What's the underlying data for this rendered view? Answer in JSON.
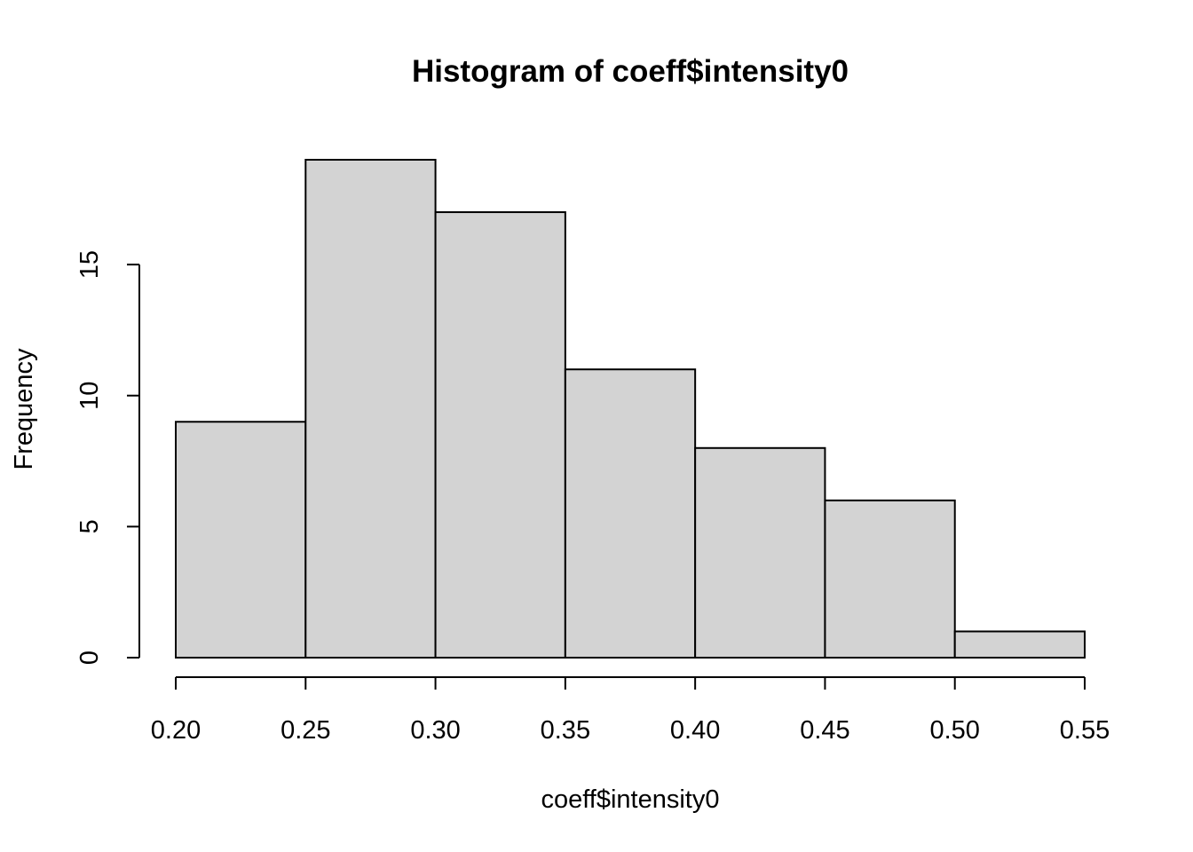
{
  "chart_data": {
    "type": "bar",
    "subtype": "histogram",
    "title": "Histogram of coeff$intensity0",
    "xlabel": "coeff$intensity0",
    "ylabel": "Frequency",
    "bins": [
      {
        "start": 0.2,
        "end": 0.25,
        "count": 9
      },
      {
        "start": 0.25,
        "end": 0.3,
        "count": 19
      },
      {
        "start": 0.3,
        "end": 0.35,
        "count": 17
      },
      {
        "start": 0.35,
        "end": 0.4,
        "count": 11
      },
      {
        "start": 0.4,
        "end": 0.45,
        "count": 8
      },
      {
        "start": 0.45,
        "end": 0.5,
        "count": 6
      },
      {
        "start": 0.5,
        "end": 0.55,
        "count": 1
      }
    ],
    "xlim": [
      0.2,
      0.55
    ],
    "ylim": [
      0,
      19
    ],
    "x_ticks": [
      "0.20",
      "0.25",
      "0.30",
      "0.35",
      "0.40",
      "0.45",
      "0.50",
      "0.55"
    ],
    "y_ticks": [
      "0",
      "5",
      "10",
      "15"
    ],
    "grid": false,
    "legend": "none",
    "bar_fill": "#d3d3d3",
    "bar_stroke": "#000000"
  }
}
